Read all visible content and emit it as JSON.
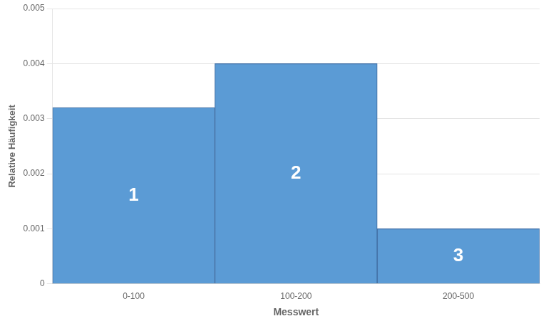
{
  "chart_data": {
    "type": "bar",
    "categories": [
      "0-100",
      "100-200",
      "200-500"
    ],
    "values": [
      0.0032,
      0.004,
      0.001
    ],
    "color": "#5B9BD5",
    "annotations": [
      "1",
      "2",
      "3"
    ],
    "xlabel": "Messwert",
    "ylabel": "Relative Häufigkeit",
    "ylim": [
      0,
      0.005
    ],
    "yticks": [
      0,
      0.001,
      0.002,
      0.003,
      0.004,
      0.005
    ],
    "grid": true
  }
}
